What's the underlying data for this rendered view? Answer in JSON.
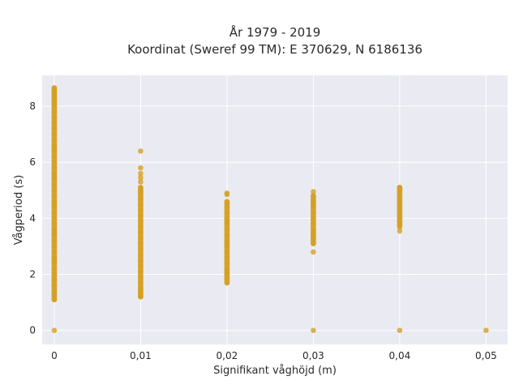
{
  "chart_data": {
    "type": "scatter",
    "title": "År 1979 - 2019",
    "subtitle": "Koordinat (Sweref 99 TM): E 370629, N 6186136",
    "xlabel": "Signifikant våghöjd (m)",
    "ylabel": "Vågperiod (s)",
    "xlim": [
      -0.0014,
      0.0525
    ],
    "ylim": [
      -0.5,
      9.1
    ],
    "xticks": [
      0,
      0.01,
      0.02,
      0.03,
      0.04,
      0.05
    ],
    "xtick_labels": [
      "0",
      "0,01",
      "0,02",
      "0,03",
      "0,04",
      "0,05"
    ],
    "yticks": [
      0,
      2,
      4,
      6,
      8
    ],
    "ytick_labels": [
      "0",
      "2",
      "4",
      "6",
      "8"
    ],
    "grid": true,
    "legend": "none",
    "colors": {
      "marker": "#d4a021",
      "plot_background": "#eaeaf2",
      "grid": "#ffffff"
    },
    "series": [
      {
        "x": [
          0,
          0,
          0,
          0,
          0,
          0,
          0,
          0,
          0,
          0,
          0,
          0,
          0,
          0,
          0,
          0,
          0,
          0,
          0,
          0,
          0,
          0,
          0,
          0,
          0,
          0,
          0,
          0,
          0,
          0,
          0,
          0,
          0,
          0,
          0,
          0,
          0,
          0,
          0,
          0,
          0,
          0,
          0,
          0,
          0,
          0,
          0,
          0,
          0,
          0,
          0.01,
          0.01,
          0.01,
          0.01,
          0.01,
          0.01,
          0.01,
          0.01,
          0.01,
          0.01,
          0.01,
          0.01,
          0.01,
          0.01,
          0.01,
          0.01,
          0.01,
          0.01,
          0.01,
          0.01,
          0.01,
          0.01,
          0.01,
          0.01,
          0.01,
          0.01,
          0.01,
          0.02,
          0.02,
          0.02,
          0.02,
          0.02,
          0.02,
          0.02,
          0.02,
          0.02,
          0.02,
          0.02,
          0.02,
          0.02,
          0.02,
          0.02,
          0.02,
          0.02,
          0.02,
          0.02,
          0.02,
          0.02,
          0.03,
          0.03,
          0.03,
          0.03,
          0.03,
          0.03,
          0.03,
          0.03,
          0.03,
          0.03,
          0.03,
          0.03,
          0.03,
          0.03,
          0.03,
          0.04,
          0.04,
          0.04,
          0.04,
          0.04,
          0.04,
          0.04,
          0.04,
          0.04,
          0.04,
          0.04,
          0.04,
          0.04,
          0.05
        ],
        "y": [
          0,
          1.1,
          1.25,
          1.4,
          1.6,
          1.8,
          2.0,
          2.2,
          2.4,
          2.6,
          2.8,
          3.0,
          3.2,
          3.4,
          3.6,
          3.8,
          4.0,
          4.2,
          4.4,
          4.6,
          4.8,
          5.0,
          5.2,
          5.4,
          5.6,
          5.8,
          6.0,
          6.2,
          6.4,
          6.6,
          6.8,
          7.0,
          7.2,
          7.4,
          7.6,
          7.8,
          8.0,
          8.1,
          8.2,
          8.3,
          8.4,
          8.5,
          8.55,
          8.6,
          8.65,
          2.5,
          3.5,
          4.5,
          5.5,
          6.5,
          1.2,
          1.35,
          1.5,
          1.7,
          1.9,
          2.1,
          2.3,
          2.5,
          2.7,
          2.9,
          3.1,
          3.3,
          3.5,
          3.7,
          3.9,
          4.1,
          4.3,
          4.5,
          4.7,
          4.9,
          5.0,
          5.1,
          5.3,
          5.45,
          5.6,
          5.8,
          6.4,
          1.7,
          1.85,
          2.0,
          2.2,
          2.4,
          2.6,
          2.8,
          3.0,
          3.2,
          3.4,
          3.6,
          3.8,
          4.0,
          4.2,
          4.4,
          4.55,
          4.85,
          4.9,
          2.1,
          3.1,
          3.9,
          0,
          2.8,
          3.1,
          3.25,
          3.4,
          3.6,
          3.8,
          4.0,
          4.2,
          4.4,
          4.6,
          4.8,
          4.95,
          3.5,
          4.5,
          0,
          3.55,
          3.75,
          3.9,
          4.05,
          4.2,
          4.35,
          4.5,
          4.65,
          4.8,
          4.95,
          5.05,
          5.1,
          0
        ]
      }
    ]
  }
}
